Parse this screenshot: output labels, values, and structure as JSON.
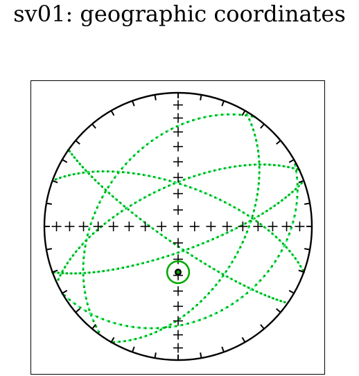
{
  "title": "sv01: geographic coordinates",
  "chart_data": {
    "type": "scatter",
    "projection": "equal-area stereonet (lower hemisphere)",
    "title": "sv01: geographic coordinates",
    "mean_direction": {
      "dec": 180,
      "inc": 62,
      "alpha95": 6
    },
    "great_circles": [
      {
        "pole_dec": 300,
        "pole_inc": 40,
        "color": "#00aa00"
      },
      {
        "pole_dec": 340,
        "pole_inc": 15,
        "color": "#00aa00"
      },
      {
        "pole_dec": 330,
        "pole_inc": 60,
        "color": "#00aa00"
      },
      {
        "pole_dec": 200,
        "pole_inc": 25,
        "color": "#33ff99"
      },
      {
        "pole_dec": 155,
        "pole_inc": 25,
        "color": "#33ff99"
      },
      {
        "pole_dec": 125,
        "pole_inc": 50,
        "color": "#33ff99"
      },
      {
        "pole_dec": 35,
        "pole_inc": 10,
        "color": "#33ff99"
      }
    ],
    "colors": {
      "lower_hemisphere": "#00aa00",
      "upper_hemisphere": "#33ff99",
      "mean_circle": "#00aa00",
      "axes": "#000000"
    },
    "grid": false
  }
}
